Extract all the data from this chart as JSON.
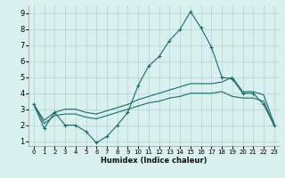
{
  "xlabel": "Humidex (Indice chaleur)",
  "background_color": "#d8f0ee",
  "grid_color": "#b8d8d4",
  "line_color": "#1a6b6b",
  "xlim": [
    -0.5,
    23.5
  ],
  "ylim": [
    0.7,
    9.5
  ],
  "xticks": [
    0,
    1,
    2,
    3,
    4,
    5,
    6,
    7,
    8,
    9,
    10,
    11,
    12,
    13,
    14,
    15,
    16,
    17,
    18,
    19,
    20,
    21,
    22,
    23
  ],
  "yticks": [
    1,
    2,
    3,
    4,
    5,
    6,
    7,
    8,
    9
  ],
  "series1_x": [
    0,
    1,
    2,
    3,
    4,
    5,
    6,
    7,
    8,
    9,
    10,
    11,
    12,
    13,
    14,
    15,
    16,
    17,
    18,
    19,
    20,
    21,
    22,
    23
  ],
  "series1_y": [
    3.3,
    1.8,
    2.8,
    2.0,
    2.0,
    1.6,
    0.9,
    1.3,
    2.0,
    2.8,
    4.5,
    5.7,
    6.3,
    7.3,
    8.0,
    9.1,
    8.1,
    6.9,
    5.0,
    4.9,
    4.0,
    4.0,
    3.3,
    2.0
  ],
  "series2_x": [
    0,
    1,
    2,
    3,
    4,
    5,
    6,
    7,
    8,
    9,
    10,
    11,
    12,
    13,
    14,
    15,
    16,
    17,
    18,
    19,
    20,
    21,
    22,
    23
  ],
  "series2_y": [
    3.3,
    2.3,
    2.8,
    3.0,
    3.0,
    2.8,
    2.7,
    2.9,
    3.1,
    3.3,
    3.6,
    3.8,
    4.0,
    4.2,
    4.4,
    4.6,
    4.6,
    4.6,
    4.7,
    5.0,
    4.1,
    4.1,
    3.9,
    2.1
  ],
  "series3_x": [
    0,
    1,
    2,
    3,
    4,
    5,
    6,
    7,
    8,
    9,
    10,
    11,
    12,
    13,
    14,
    15,
    16,
    17,
    18,
    19,
    20,
    21,
    22,
    23
  ],
  "series3_y": [
    3.3,
    2.1,
    2.6,
    2.7,
    2.7,
    2.5,
    2.4,
    2.6,
    2.8,
    3.0,
    3.2,
    3.4,
    3.5,
    3.7,
    3.8,
    4.0,
    4.0,
    4.0,
    4.1,
    3.8,
    3.7,
    3.7,
    3.5,
    2.0
  ]
}
